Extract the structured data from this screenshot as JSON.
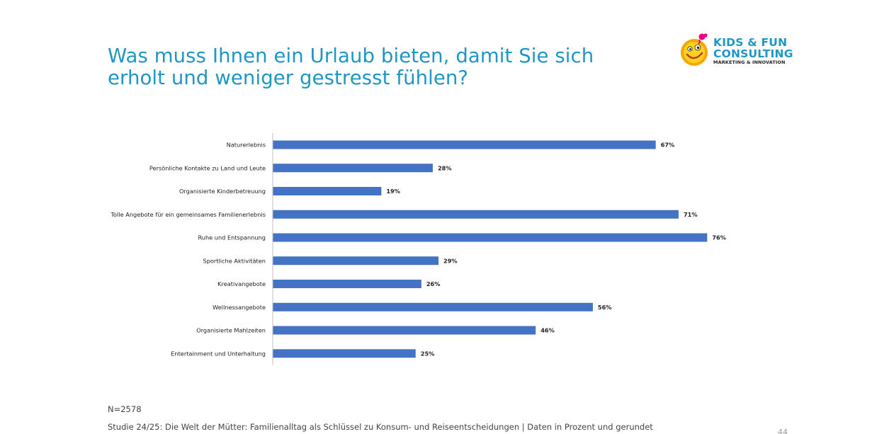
{
  "slide": {
    "title_line1": "Was muss Ihnen ein Urlaub bieten, damit Sie sich",
    "title_line2": "erholt und weniger gestresst fühlen?",
    "sample_note": "N=2578",
    "source": "Studie 24/25: Die Welt der Mütter: Familienalltag als Schlüssel zu Konsum- und Reiseentscheidungen | Daten in Prozent und gerundet",
    "page_number": "44"
  },
  "logo": {
    "line1": "KIDS & FUN",
    "line2": "CONSULTING",
    "line3": "MARKETING & INNOVATION",
    "icon": "smiley-face-icon"
  },
  "colors": {
    "title": "#1f97c6",
    "bar": "#4472c4",
    "axis": "#bfbfbf"
  },
  "chart_data": {
    "type": "bar",
    "orientation": "horizontal",
    "categories": [
      "Naturerlebnis",
      "Persönliche Kontakte zu Land und Leute",
      "Organisierte Kinderbetreuung",
      "Tolle Angebote für ein gemeinsames Familienerlebnis",
      "Ruhe und Entspannung",
      "Sportliche Aktivitäten",
      "Kreativangebote",
      "Wellnessangebote",
      "Organisierte Mahlzeiten",
      "Entertainment und Unterhaltung"
    ],
    "values": [
      67,
      28,
      19,
      71,
      76,
      29,
      26,
      56,
      46,
      25
    ],
    "value_labels": [
      "67%",
      "28%",
      "19%",
      "71%",
      "76%",
      "29%",
      "26%",
      "56%",
      "46%",
      "25%"
    ],
    "unit": "%",
    "xlim": [
      0,
      100
    ],
    "grid": false,
    "legend": "none"
  }
}
